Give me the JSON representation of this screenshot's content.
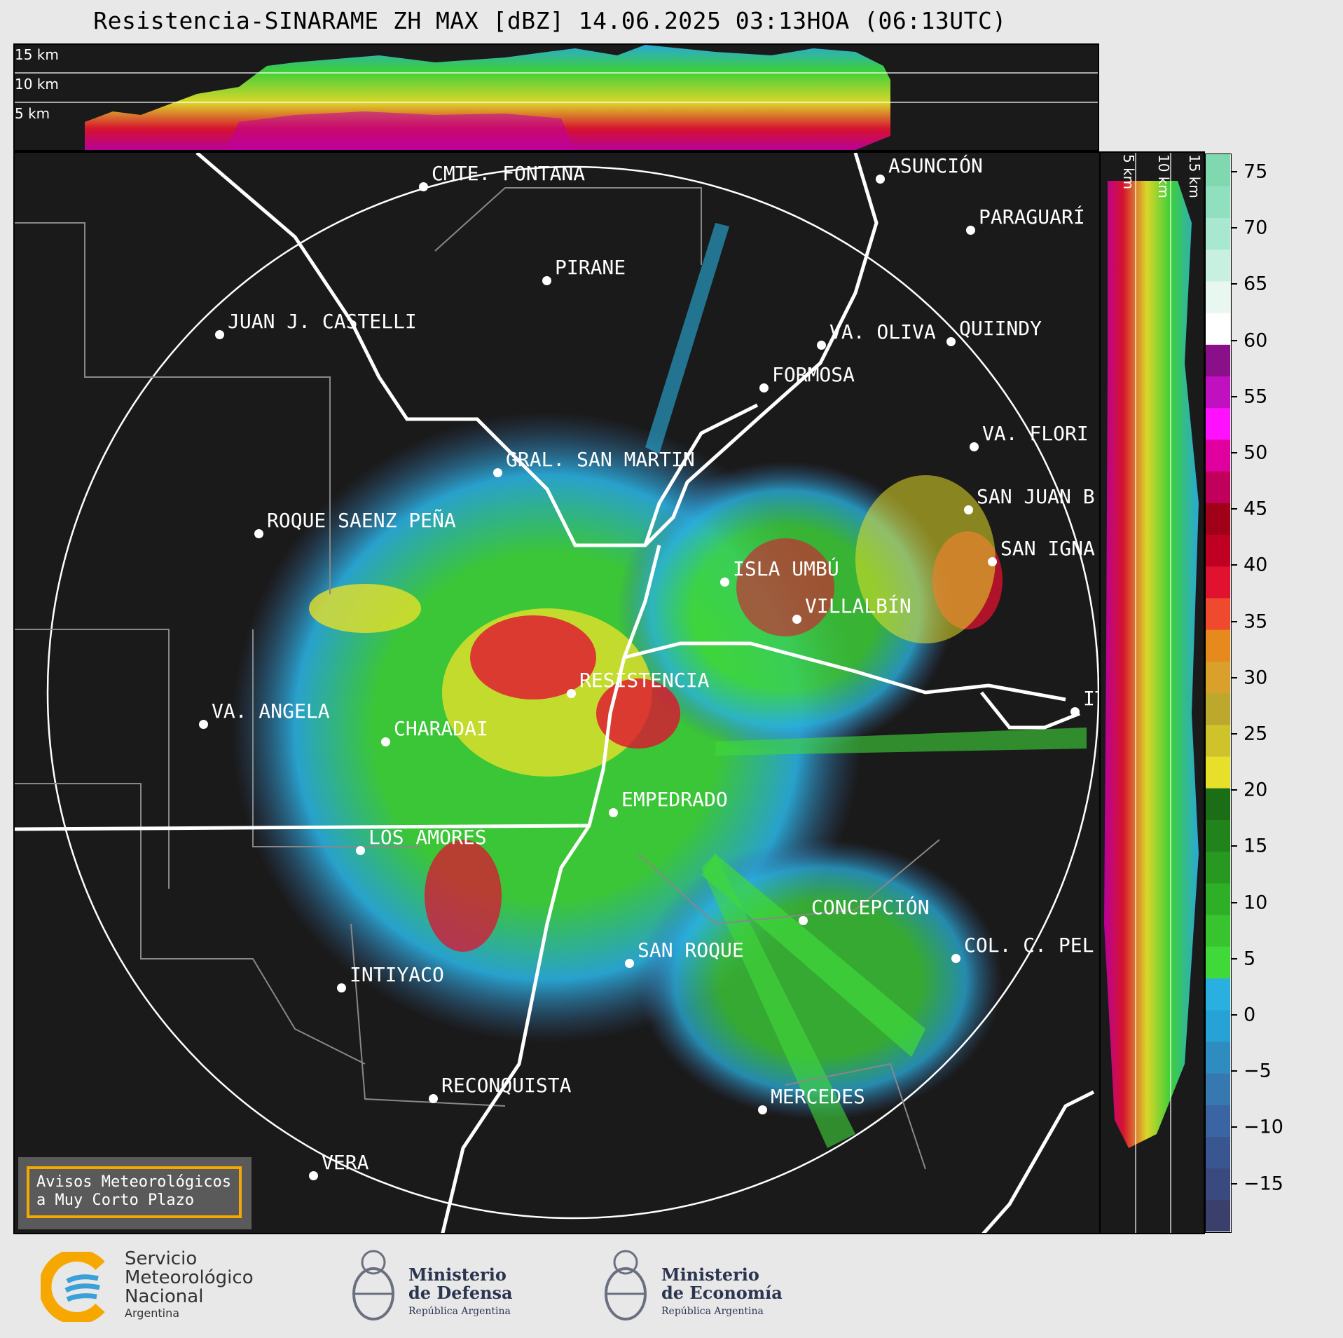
{
  "title": "Resistencia-SINARAME ZH MAX [dBZ] 14.06.2025 03:13HOA (06:13UTC)",
  "top_panel": {
    "km_labels": [
      "15 km",
      "10 km",
      "5 km"
    ]
  },
  "right_panel": {
    "km_labels": [
      "5 km",
      "10 km",
      "15 km"
    ]
  },
  "colorbar": {
    "unit": "dBZ",
    "ticks": [
      "75",
      "70",
      "65",
      "60",
      "55",
      "50",
      "45",
      "40",
      "35",
      "30",
      "25",
      "20",
      "15",
      "10",
      "5",
      "0",
      "−5",
      "−10",
      "−15"
    ]
  },
  "cities": [
    {
      "name": "CMTE. FONTANA"
    },
    {
      "name": "ASUNCIÓN"
    },
    {
      "name": "PARAGUARÍ"
    },
    {
      "name": "PIRANE"
    },
    {
      "name": "JUAN J. CASTELLI"
    },
    {
      "name": "VA. OLIVA"
    },
    {
      "name": "QUIINDY"
    },
    {
      "name": "FORMOSA"
    },
    {
      "name": "VA. FLORI"
    },
    {
      "name": "GRAL. SAN MARTIN"
    },
    {
      "name": "SAN JUAN B"
    },
    {
      "name": "ROQUE SAENZ PEÑA"
    },
    {
      "name": "SAN IGNA"
    },
    {
      "name": "ISLA UMBÚ"
    },
    {
      "name": "VILLALBÍN"
    },
    {
      "name": "RESISTENCIA"
    },
    {
      "name": "VA. ANGELA"
    },
    {
      "name": "CHARADAI"
    },
    {
      "name": "ITÍ"
    },
    {
      "name": "EMPEDRADO"
    },
    {
      "name": "LOS AMORES"
    },
    {
      "name": "CONCEPCIÓN"
    },
    {
      "name": "COL. C. PEL"
    },
    {
      "name": "SAN ROQUE"
    },
    {
      "name": "INTIYACO"
    },
    {
      "name": "RECONQUISTA"
    },
    {
      "name": "MERCEDES"
    },
    {
      "name": "VERA"
    }
  ],
  "notice": {
    "line1": "Avisos Meteorológicos",
    "line2": "a Muy Corto Plazo"
  },
  "footer": {
    "smn": {
      "line1": "Servicio",
      "line2": "Meteorológico",
      "line3": "Nacional",
      "line4": "Argentina"
    },
    "defensa": {
      "line1": "Ministerio",
      "line2": "de Defensa",
      "line3": "República Argentina"
    },
    "economia": {
      "line1": "Ministerio",
      "line2": "de Economía",
      "line3": "República Argentina"
    }
  },
  "colors": {
    "background": "#1a1a1a",
    "scale": [
      "#3a3f6b",
      "#3b4a7e",
      "#3a5690",
      "#3a65a2",
      "#3878b0",
      "#2f8cc0",
      "#27a2d6",
      "#2ab0e0",
      "#3fd93a",
      "#38c42f",
      "#2fae28",
      "#279820",
      "#21831b",
      "#1c6e16",
      "#e6e02a",
      "#cfc32c",
      "#bca82c",
      "#d9a12b",
      "#e68a1e",
      "#f04a2e",
      "#e01230",
      "#c00022",
      "#a00018",
      "#c0005a",
      "#e000a0",
      "#ff10ff",
      "#c010c0",
      "#8a108a",
      "#ffffff",
      "#e8f8f0",
      "#c8f0e0",
      "#a8e8d0",
      "#90e0c0",
      "#80d8b0"
    ]
  }
}
